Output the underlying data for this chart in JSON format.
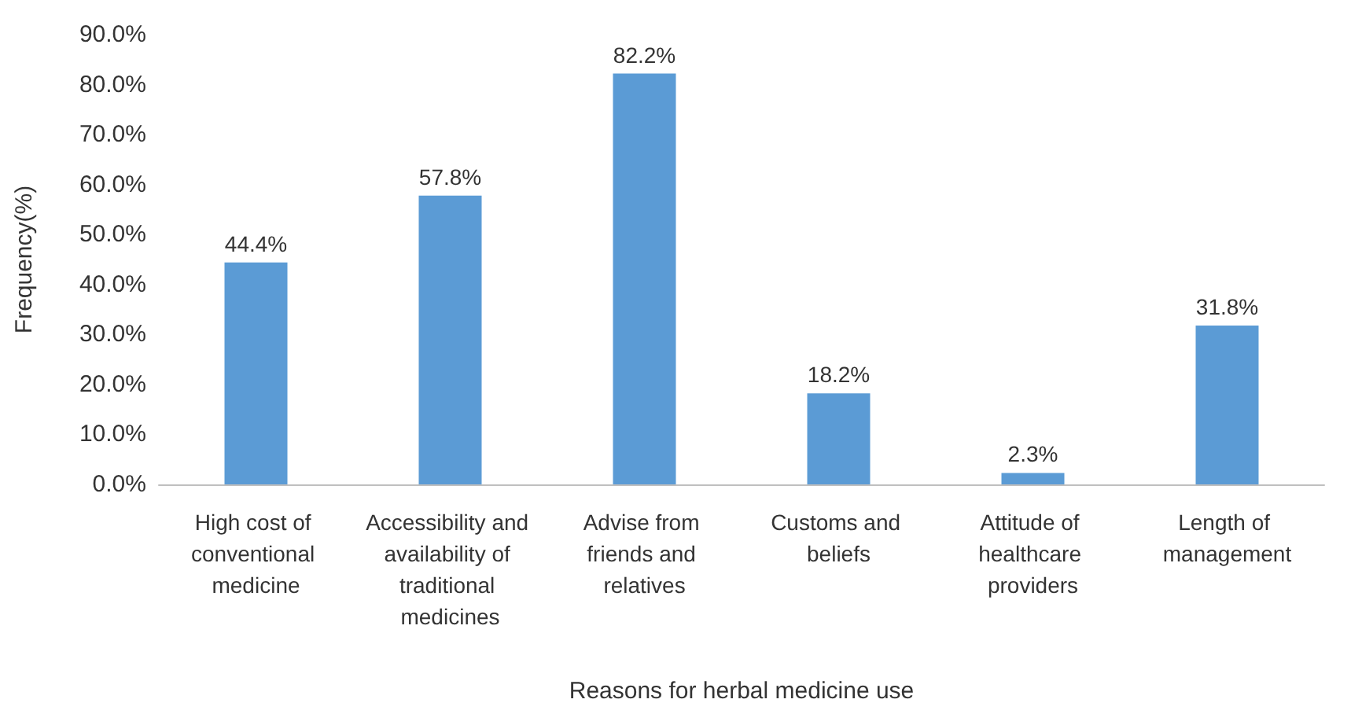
{
  "chart_data": {
    "type": "bar",
    "xlabel": "Reasons for herbal medicine use",
    "ylabel": "Frequency(%)",
    "categories": [
      "High cost of conventional medicine",
      "Accessibility and availability of traditional medicines",
      "Advise from friends and relatives",
      "Customs and beliefs",
      "Attitude of healthcare providers",
      "Length of management"
    ],
    "values": [
      44.4,
      57.8,
      82.2,
      18.2,
      2.3,
      31.8
    ],
    "value_labels": [
      "44.4%",
      "57.8%",
      "82.2%",
      "18.2%",
      "2.3%",
      "31.8%"
    ],
    "color": "#5b9bd5",
    "ylim": [
      0,
      90
    ],
    "yticks": [
      {
        "value": 0,
        "label": "0.0%"
      },
      {
        "value": 10,
        "label": "10.0%"
      },
      {
        "value": 20,
        "label": "20.0%"
      },
      {
        "value": 30,
        "label": "30.0%"
      },
      {
        "value": 40,
        "label": "40.0%"
      },
      {
        "value": 50,
        "label": "50.0%"
      },
      {
        "value": 60,
        "label": "60.0%"
      },
      {
        "value": 70,
        "label": "70.0%"
      },
      {
        "value": 80,
        "label": "80.0%"
      },
      {
        "value": 90,
        "label": "90.0%"
      }
    ],
    "grid": false
  }
}
